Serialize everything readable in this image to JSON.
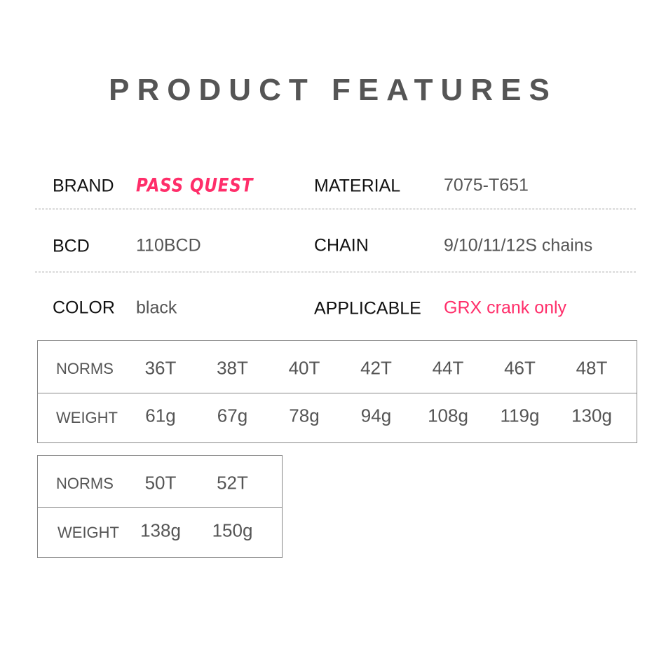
{
  "title": "PRODUCT FEATURES",
  "accent_color": "#ff2e6a",
  "specs": {
    "brand": {
      "label": "BRAND",
      "value": "PASS QUEST"
    },
    "material": {
      "label": "MATERIAL",
      "value": "7075-T651"
    },
    "bcd": {
      "label": "BCD",
      "value": "110BCD"
    },
    "chain": {
      "label": "CHAIN",
      "value": "9/10/11/12S chains"
    },
    "color": {
      "label": "COLOR",
      "value": "black"
    },
    "applicable": {
      "label": "APPLICABLE",
      "value": "GRX crank only"
    }
  },
  "tables": [
    {
      "norms_label": "NORMS",
      "weight_label": "WEIGHT",
      "norms": [
        "36T",
        "38T",
        "40T",
        "42T",
        "44T",
        "46T",
        "48T"
      ],
      "weights": [
        "61g",
        "67g",
        "78g",
        "94g",
        "108g",
        "119g",
        "130g"
      ]
    },
    {
      "norms_label": "NORMS",
      "weight_label": "WEIGHT",
      "norms": [
        "50T",
        "52T"
      ],
      "weights": [
        "138g",
        "150g"
      ]
    }
  ]
}
